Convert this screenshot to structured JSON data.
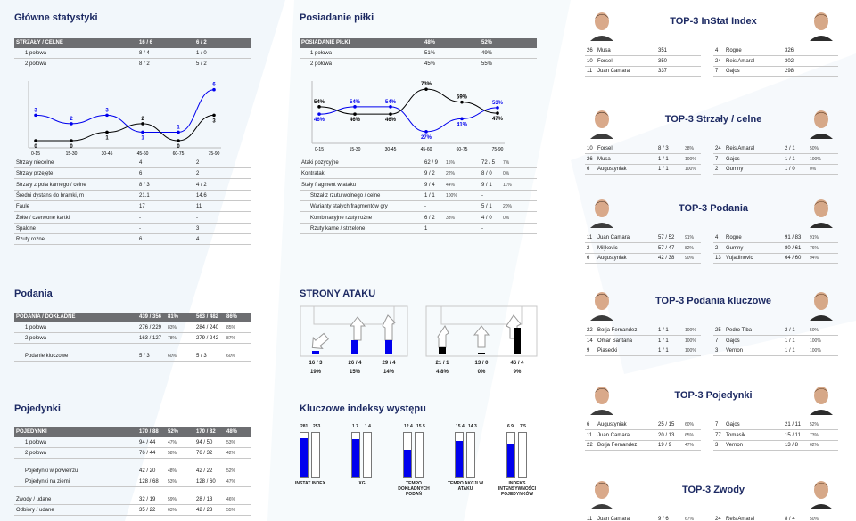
{
  "colors": {
    "title": "#1d2a63",
    "header_bg": "#6d6e71",
    "blue": "#0000ee",
    "black": "#000000"
  },
  "stats": {
    "title": "Główne statystyki",
    "header": [
      "STRZAŁY / CELNE",
      "16 / 6",
      "6 / 2"
    ],
    "rows": [
      [
        "1 połowa",
        "8 / 4",
        "1 / 0"
      ],
      [
        "2 połowa",
        "8 / 2",
        "5 / 2"
      ]
    ],
    "chart_ticks": [
      "0-15",
      "15-30",
      "30-45",
      "45-60",
      "60-75",
      "75-90"
    ],
    "detail": [
      [
        "Strzały niecelne",
        "4",
        "2"
      ],
      [
        "Strzały przejęte",
        "6",
        "2"
      ],
      [
        "Strzały z pola karnego / celne",
        "8 / 3",
        "4 / 2"
      ],
      [
        "Średni dystans do bramki, m",
        "21.1",
        "14.6"
      ],
      [
        "Faule",
        "17",
        "11"
      ],
      [
        "Żółte / czerwone kartki",
        "-",
        "-"
      ],
      [
        "Spalone",
        "-",
        "3"
      ],
      [
        "Rzuty rożne",
        "6",
        "4"
      ]
    ]
  },
  "possession": {
    "title": "Posiadanie piłki",
    "header": [
      "POSIADANIE PIŁKI",
      "48%",
      "52%"
    ],
    "rows": [
      [
        "1 połowa",
        "51%",
        "49%"
      ],
      [
        "2 połowa",
        "45%",
        "55%"
      ]
    ],
    "chart_ticks": [
      "0-15",
      "15-30",
      "30-45",
      "45-60",
      "60-75",
      "75-90"
    ],
    "detail": [
      [
        "Ataki pozycyjne",
        "62 / 9",
        "15%",
        "72 / 5",
        "7%"
      ],
      [
        "Kontrataki",
        "9 / 2",
        "22%",
        "8 / 0",
        "0%"
      ],
      [
        "Stały fragment w ataku",
        "9 / 4",
        "44%",
        "9 / 1",
        "11%"
      ],
      [
        "Strzał z rzutu wolnego / celne",
        "1 / 1",
        "100%",
        "-",
        ""
      ],
      [
        "Warianty stałych fragmentów gry",
        "-",
        "",
        "5 / 1",
        "20%"
      ],
      [
        "Kombinacyjne rzuty rożne",
        "6 / 2",
        "33%",
        "4 / 0",
        "0%"
      ],
      [
        "Rzuty karne / strzelone",
        "1",
        "",
        "-",
        ""
      ]
    ]
  },
  "passes": {
    "title": "Podania",
    "header": [
      "PODANIA / DOKŁADNE",
      "439 / 356",
      "81%",
      "563 / 482",
      "86%"
    ],
    "rows": [
      [
        "1 połowa",
        "276 / 229",
        "83%",
        "284 / 240",
        "85%"
      ],
      [
        "2 połowa",
        "163 / 127",
        "78%",
        "279 / 242",
        "87%"
      ],
      [
        "Podanie kluczowe",
        "5 / 3",
        "60%",
        "5 / 3",
        "60%"
      ]
    ]
  },
  "duels": {
    "title": "Pojedynki",
    "header": [
      "POJEDYNKI",
      "170 / 88",
      "52%",
      "170 / 82",
      "48%"
    ],
    "rows": [
      [
        "1 połowa",
        "94 / 44",
        "47%",
        "94 / 50",
        "53%"
      ],
      [
        "2 połowa",
        "76 / 44",
        "58%",
        "76 / 32",
        "42%"
      ],
      [
        "Pojedynki w powietrzu",
        "42 / 20",
        "48%",
        "42 / 22",
        "52%"
      ],
      [
        "Pojedynki na ziemi",
        "128 / 68",
        "53%",
        "128 / 60",
        "47%"
      ],
      [
        "Zwody / udane",
        "32 / 19",
        "59%",
        "28 / 13",
        "46%"
      ],
      [
        "Odbiory / udane",
        "35 / 22",
        "63%",
        "42 / 23",
        "55%"
      ]
    ]
  },
  "attack": {
    "title": "STRONY ATAKU",
    "left": [
      [
        "16 / 3",
        "19%"
      ],
      [
        "26 / 4",
        "15%"
      ],
      [
        "29 / 4",
        "14%"
      ]
    ],
    "right": [
      [
        "21 / 1",
        "4.8%"
      ],
      [
        "13 / 0",
        "0%"
      ],
      [
        "46 / 4",
        "9%"
      ]
    ]
  },
  "kpi": {
    "title": "Kluczowe indeksy występu",
    "items": [
      {
        "label": "INSTAT INDEX",
        "a": "281",
        "b": "253",
        "fa": 0.88,
        "fb": 0.8
      },
      {
        "label": "XG",
        "a": "1.7",
        "b": "1.4",
        "fa": 0.86,
        "fb": 0.71
      },
      {
        "label": "TEMPO DOKŁADNYCH PODAŃ",
        "a": "12.4",
        "b": "15.5",
        "fa": 0.62,
        "fb": 0.79
      },
      {
        "label": "TEMPO AKCJI W ATAKU",
        "a": "15.4",
        "b": "14.3",
        "fa": 0.82,
        "fb": 0.76
      },
      {
        "label": "INDEKS INTENSYWNOŚCI POJEDYNKÓW",
        "a": "6.9",
        "b": "7.5",
        "fa": 0.76,
        "fb": 0.82
      }
    ]
  },
  "top3": [
    {
      "title": "TOP-3 InStat Index",
      "left": [
        [
          "26",
          "Musa",
          "351",
          ""
        ],
        [
          "10",
          "Forsell",
          "350",
          ""
        ],
        [
          "11",
          "Juan Camara",
          "337",
          ""
        ]
      ],
      "right": [
        [
          "4",
          "Rogne",
          "326",
          ""
        ],
        [
          "24",
          "Reis Amaral",
          "302",
          ""
        ],
        [
          "7",
          "Gajos",
          "298",
          ""
        ]
      ]
    },
    {
      "title": "TOP-3 Strzały / celne",
      "left": [
        [
          "10",
          "Forsell",
          "8 / 3",
          "38%"
        ],
        [
          "26",
          "Musa",
          "1 / 1",
          "100%"
        ],
        [
          "6",
          "Augustyniak",
          "1 / 1",
          "100%"
        ]
      ],
      "right": [
        [
          "24",
          "Reis Amaral",
          "2 / 1",
          "50%"
        ],
        [
          "7",
          "Gajos",
          "1 / 1",
          "100%"
        ],
        [
          "2",
          "Gumny",
          "1 / 0",
          "0%"
        ]
      ]
    },
    {
      "title": "TOP-3 Podania",
      "left": [
        [
          "11",
          "Juan Camara",
          "57 / 52",
          "91%"
        ],
        [
          "2",
          "Miljkovic",
          "57 / 47",
          "82%"
        ],
        [
          "6",
          "Augustyniak",
          "42 / 38",
          "90%"
        ]
      ],
      "right": [
        [
          "4",
          "Rogne",
          "91 / 83",
          "91%"
        ],
        [
          "2",
          "Gumny",
          "80 / 61",
          "76%"
        ],
        [
          "13",
          "Vujadinovic",
          "64 / 60",
          "94%"
        ]
      ]
    },
    {
      "title": "TOP-3 Podania kluczowe",
      "left": [
        [
          "22",
          "Borja Fernandez",
          "1 / 1",
          "100%"
        ],
        [
          "14",
          "Omar Santana",
          "1 / 1",
          "100%"
        ],
        [
          "9",
          "Piasecki",
          "1 / 1",
          "100%"
        ]
      ],
      "right": [
        [
          "25",
          "Pedro Tiba",
          "2 / 1",
          "50%"
        ],
        [
          "7",
          "Gajos",
          "1 / 1",
          "100%"
        ],
        [
          "3",
          "Vernon",
          "1 / 1",
          "100%"
        ]
      ]
    },
    {
      "title": "TOP-3 Pojedynki",
      "left": [
        [
          "6",
          "Augustyniak",
          "25 / 15",
          "60%"
        ],
        [
          "11",
          "Juan Camara",
          "20 / 13",
          "65%"
        ],
        [
          "22",
          "Borja Fernandez",
          "19 / 9",
          "47%"
        ]
      ],
      "right": [
        [
          "7",
          "Gajos",
          "21 / 11",
          "52%"
        ],
        [
          "77",
          "Tomasik",
          "15 / 11",
          "73%"
        ],
        [
          "3",
          "Vernon",
          "13 / 8",
          "62%"
        ]
      ]
    },
    {
      "title": "TOP-3 Zwody",
      "left": [
        [
          "11",
          "Juan Camara",
          "9 / 6",
          "67%"
        ]
      ],
      "right": [
        [
          "24",
          "Reis Amaral",
          "8 / 4",
          "50%"
        ]
      ]
    }
  ],
  "chart_data": [
    {
      "type": "line",
      "categories": [
        "0-15",
        "15-30",
        "30-45",
        "45-60",
        "60-75",
        "75-90"
      ],
      "series": [
        {
          "values": [
            3,
            2,
            3,
            1,
            1,
            6
          ],
          "color": "#0000ee"
        },
        {
          "values": [
            0,
            0,
            1,
            2,
            0,
            3
          ],
          "color": "#000000"
        }
      ],
      "grid": false
    },
    {
      "type": "line",
      "categories": [
        "0-15",
        "15-30",
        "30-45",
        "45-60",
        "60-75",
        "75-90"
      ],
      "series": [
        {
          "values": [
            46,
            54,
            54,
            27,
            41,
            53
          ],
          "unit": "%",
          "color": "#0000ee"
        },
        {
          "values": [
            54,
            46,
            46,
            73,
            59,
            47
          ],
          "unit": "%",
          "color": "#000000"
        }
      ],
      "grid": false
    }
  ]
}
